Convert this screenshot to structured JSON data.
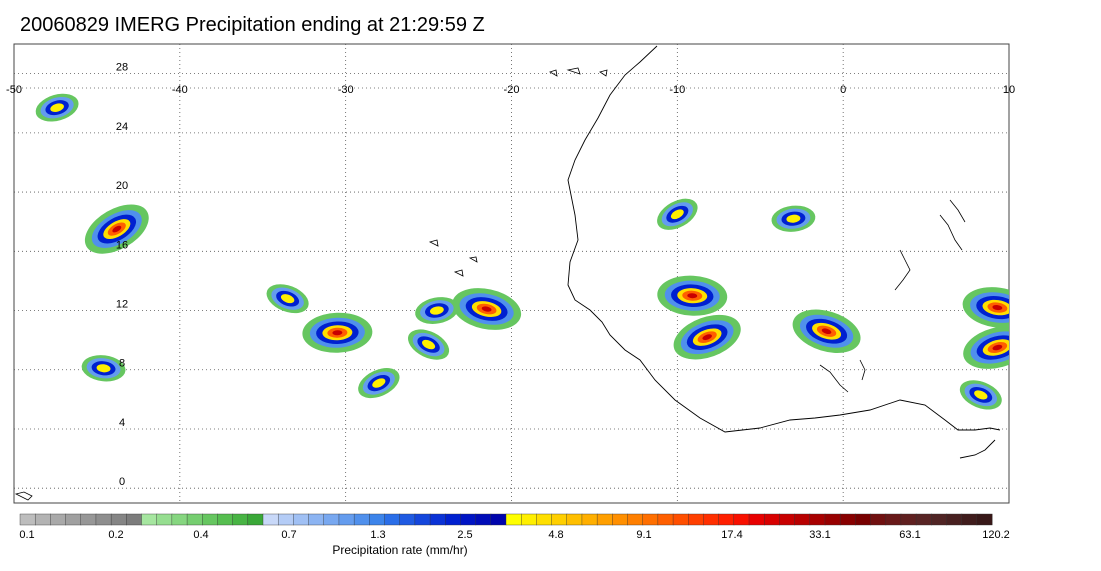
{
  "title": "20060829 IMERG Precipitation ending at 21:29:59 Z",
  "map": {
    "lon_range": [
      -50,
      10
    ],
    "lat_range": [
      -1,
      30
    ],
    "lon_ticks": [
      "-50",
      "-40",
      "-30",
      "-20",
      "-10",
      "0",
      "10"
    ],
    "lat_ticks": [
      "28",
      "24",
      "20",
      "16",
      "12",
      "8",
      "4",
      "0"
    ],
    "grid": "dotted"
  },
  "colorbar": {
    "title": "Precipitation rate (mm/hr)",
    "labels": [
      "0.1",
      "0.2",
      "0.4",
      "0.7",
      "1.3",
      "2.5",
      "4.8",
      "9.1",
      "17.4",
      "33.1",
      "63.1",
      "120.2"
    ],
    "colors": [
      "#bdbdbd",
      "#b3b3b3",
      "#a9a9a9",
      "#a0a0a0",
      "#979797",
      "#8e8e8e",
      "#858585",
      "#7c7c7c",
      "#a6e6a0",
      "#96de90",
      "#86d680",
      "#76ce70",
      "#66c660",
      "#56be50",
      "#48b444",
      "#3aa838",
      "#c8d8f8",
      "#b4ccf6",
      "#a0c0f4",
      "#8cb4f2",
      "#78a8f0",
      "#649cee",
      "#5090ec",
      "#3c84ea",
      "#2a6ee8",
      "#1f5ae2",
      "#1446dc",
      "#0a32d6",
      "#0020d0",
      "#0014c4",
      "#000cb8",
      "#0004ac",
      "#ffff00",
      "#ffef00",
      "#ffdf00",
      "#ffcf00",
      "#ffbf00",
      "#ffaf00",
      "#ff9f00",
      "#ff8f00",
      "#ff7f00",
      "#ff6f00",
      "#ff5f00",
      "#ff4f00",
      "#ff3f00",
      "#ff2f00",
      "#ff1f00",
      "#f81000",
      "#e80000",
      "#d80000",
      "#c80000",
      "#b80000",
      "#a80000",
      "#980000",
      "#880000",
      "#780000",
      "#701010",
      "#681818",
      "#602020",
      "#582424",
      "#502424",
      "#482020",
      "#401c1c",
      "#381818"
    ]
  },
  "precip_cells": [
    {
      "lon": -43.8,
      "lat": 17.5,
      "peak": "high"
    },
    {
      "lon": -44.6,
      "lat": 8.1,
      "peak": "moderate"
    },
    {
      "lon": -47.4,
      "lat": 25.7,
      "peak": "moderate"
    },
    {
      "lon": -33.5,
      "lat": 12.8,
      "peak": "moderate"
    },
    {
      "lon": -30.5,
      "lat": 10.5,
      "peak": "high"
    },
    {
      "lon": -28.0,
      "lat": 7.1,
      "peak": "moderate"
    },
    {
      "lon": -21.5,
      "lat": 12.1,
      "peak": "high"
    },
    {
      "lon": -24.5,
      "lat": 12.0,
      "peak": "moderate"
    },
    {
      "lon": -25.0,
      "lat": 9.7,
      "peak": "moderate"
    },
    {
      "lon": -9.1,
      "lat": 13.0,
      "peak": "high"
    },
    {
      "lon": -8.2,
      "lat": 10.2,
      "peak": "high"
    },
    {
      "lon": -1.0,
      "lat": 10.6,
      "peak": "high"
    },
    {
      "lon": -3.0,
      "lat": 18.2,
      "peak": "moderate"
    },
    {
      "lon": -10.0,
      "lat": 18.5,
      "peak": "moderate"
    },
    {
      "lon": 9.3,
      "lat": 12.2,
      "peak": "high"
    },
    {
      "lon": 9.3,
      "lat": 9.5,
      "peak": "high"
    },
    {
      "lon": 8.3,
      "lat": 6.3,
      "peak": "moderate"
    }
  ]
}
